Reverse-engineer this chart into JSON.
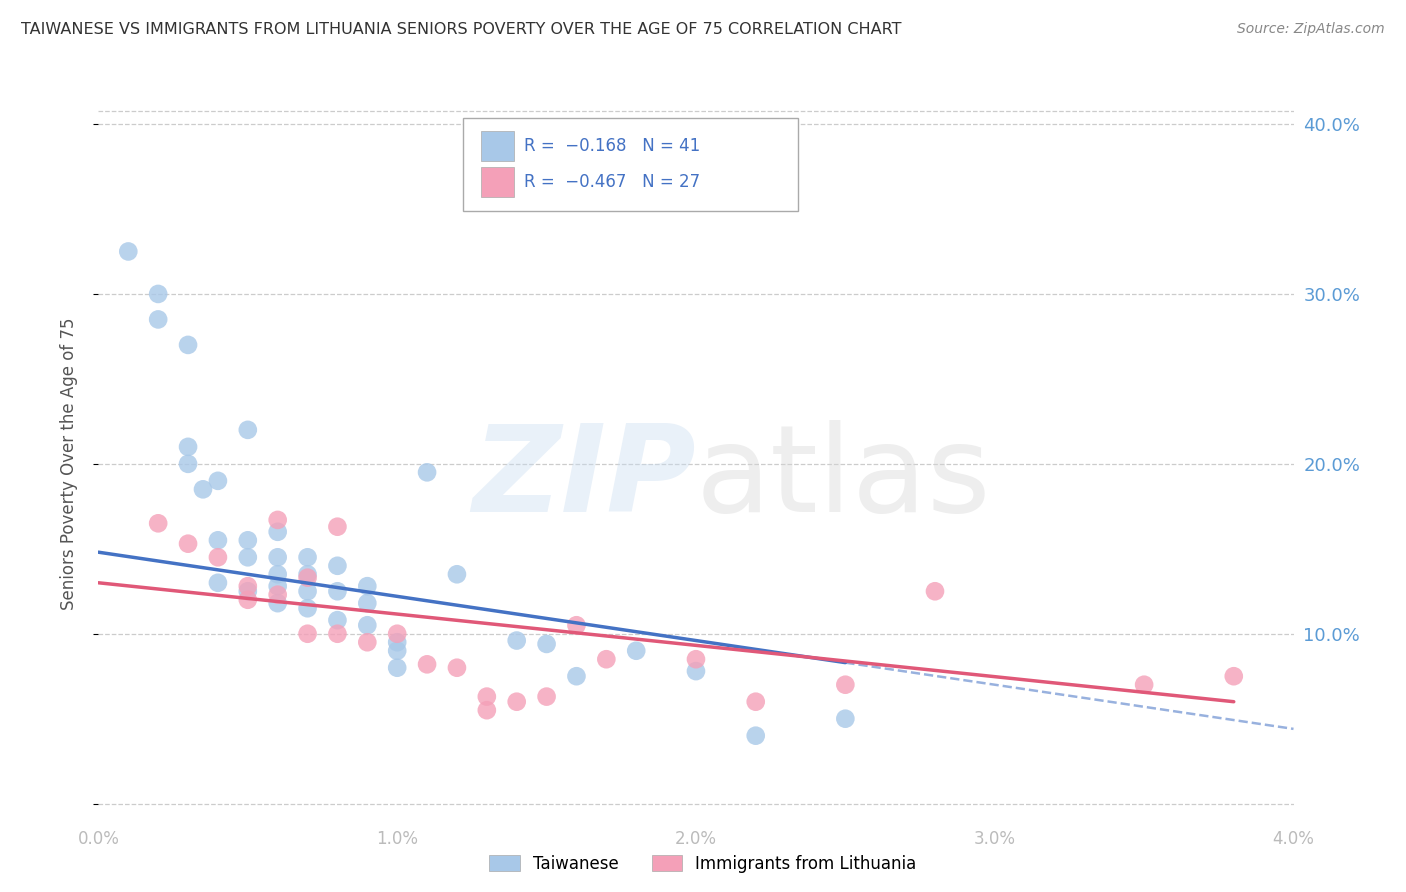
{
  "title": "TAIWANESE VS IMMIGRANTS FROM LITHUANIA SENIORS POVERTY OVER THE AGE OF 75 CORRELATION CHART",
  "source": "Source: ZipAtlas.com",
  "ylabel": "Seniors Poverty Over the Age of 75",
  "color_taiwanese": "#a8c8e8",
  "color_lithuania": "#f4a0b8",
  "color_trendline_taiwanese": "#4472c4",
  "color_trendline_lithuania": "#e05878",
  "background_color": "#ffffff",
  "xmin": 0.0,
  "xmax": 0.04,
  "ymin": -0.01,
  "ymax": 0.41,
  "yticks": [
    0.0,
    0.1,
    0.2,
    0.3,
    0.4
  ],
  "ytick_labels": [
    "",
    "10.0%",
    "20.0%",
    "30.0%",
    "40.0%"
  ],
  "xticks": [
    0.0,
    0.01,
    0.02,
    0.03,
    0.04
  ],
  "xtick_labels": [
    "0.0%",
    "1.0%",
    "2.0%",
    "3.0%",
    "4.0%"
  ],
  "tw_line_x0": 0.0,
  "tw_line_y0": 0.148,
  "tw_line_x1": 0.025,
  "tw_line_y1": 0.083,
  "lt_line_x0": 0.0,
  "lt_line_y0": 0.13,
  "lt_line_x1": 0.038,
  "lt_line_y1": 0.06,
  "taiwanese_x": [
    0.001,
    0.002,
    0.002,
    0.003,
    0.003,
    0.003,
    0.0035,
    0.004,
    0.004,
    0.004,
    0.005,
    0.005,
    0.005,
    0.005,
    0.006,
    0.006,
    0.006,
    0.006,
    0.006,
    0.007,
    0.007,
    0.007,
    0.007,
    0.008,
    0.008,
    0.008,
    0.009,
    0.009,
    0.009,
    0.01,
    0.01,
    0.01,
    0.011,
    0.012,
    0.014,
    0.015,
    0.016,
    0.018,
    0.02,
    0.022,
    0.025
  ],
  "taiwanese_y": [
    0.325,
    0.3,
    0.285,
    0.27,
    0.21,
    0.2,
    0.185,
    0.19,
    0.13,
    0.155,
    0.22,
    0.155,
    0.145,
    0.125,
    0.16,
    0.145,
    0.135,
    0.128,
    0.118,
    0.145,
    0.135,
    0.125,
    0.115,
    0.14,
    0.125,
    0.108,
    0.128,
    0.118,
    0.105,
    0.095,
    0.09,
    0.08,
    0.195,
    0.135,
    0.096,
    0.094,
    0.075,
    0.09,
    0.078,
    0.04,
    0.05
  ],
  "lithuania_x": [
    0.002,
    0.003,
    0.004,
    0.005,
    0.005,
    0.006,
    0.006,
    0.007,
    0.007,
    0.008,
    0.008,
    0.009,
    0.01,
    0.011,
    0.012,
    0.013,
    0.013,
    0.014,
    0.015,
    0.016,
    0.017,
    0.02,
    0.022,
    0.025,
    0.028,
    0.035,
    0.038
  ],
  "lithuania_y": [
    0.165,
    0.153,
    0.145,
    0.128,
    0.12,
    0.123,
    0.167,
    0.133,
    0.1,
    0.1,
    0.163,
    0.095,
    0.1,
    0.082,
    0.08,
    0.063,
    0.055,
    0.06,
    0.063,
    0.105,
    0.085,
    0.085,
    0.06,
    0.07,
    0.125,
    0.07,
    0.075
  ]
}
